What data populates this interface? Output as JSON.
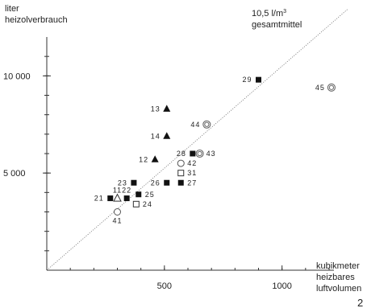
{
  "chart_data": {
    "type": "scatter",
    "ylabel_lines": [
      "liter",
      "heizolverbrauch"
    ],
    "xlabel_lines": [
      "kubikmeter",
      "heizbares",
      "luftvolumen"
    ],
    "page_number": "2",
    "xlim": [
      0,
      1200
    ],
    "ylim": [
      0,
      12000
    ],
    "x_tick_labels": [
      {
        "value": 500,
        "label": "500"
      },
      {
        "value": 1000,
        "label": "1000"
      }
    ],
    "y_tick_labels": [
      {
        "value": 5000,
        "label": "5 000"
      },
      {
        "value": 10000,
        "label": "10 000"
      }
    ],
    "x_minor_step": 100,
    "y_minor_step": 1000,
    "reference_line": {
      "slope_l_per_m3": 10.5,
      "label_value": "10,5 l/m",
      "label_exp": "3",
      "label_sub": "gesamtmittel"
    },
    "points": [
      {
        "id": "29",
        "x": 900,
        "y": 9800,
        "marker": "filled-square",
        "label_side": "left"
      },
      {
        "id": "45",
        "x": 1210,
        "y": 9400,
        "marker": "double-circle",
        "label_side": "left"
      },
      {
        "id": "13",
        "x": 510,
        "y": 8300,
        "marker": "filled-triangle",
        "label_side": "left"
      },
      {
        "id": "44",
        "x": 680,
        "y": 7500,
        "marker": "double-circle",
        "label_side": "left"
      },
      {
        "id": "14",
        "x": 510,
        "y": 6900,
        "marker": "filled-triangle",
        "label_side": "left"
      },
      {
        "id": "28",
        "x": 620,
        "y": 6000,
        "marker": "filled-square",
        "label_side": "left"
      },
      {
        "id": "43",
        "x": 650,
        "y": 6000,
        "marker": "double-circle",
        "label_side": "right"
      },
      {
        "id": "12",
        "x": 460,
        "y": 5700,
        "marker": "filled-triangle",
        "label_side": "left"
      },
      {
        "id": "42",
        "x": 570,
        "y": 5500,
        "marker": "open-circle",
        "label_side": "right"
      },
      {
        "id": "31",
        "x": 570,
        "y": 5000,
        "marker": "open-square",
        "label_side": "right"
      },
      {
        "id": "23",
        "x": 370,
        "y": 4500,
        "marker": "filled-square",
        "label_side": "left"
      },
      {
        "id": "26",
        "x": 510,
        "y": 4500,
        "marker": "filled-square",
        "label_side": "left"
      },
      {
        "id": "27",
        "x": 570,
        "y": 4500,
        "marker": "filled-square",
        "label_side": "right"
      },
      {
        "id": "25",
        "x": 390,
        "y": 3900,
        "marker": "filled-square",
        "label_side": "right"
      },
      {
        "id": "22",
        "x": 340,
        "y": 3700,
        "marker": "filled-square",
        "label_side": "above"
      },
      {
        "id": "21",
        "x": 270,
        "y": 3700,
        "marker": "filled-square",
        "label_side": "left"
      },
      {
        "id": "11",
        "x": 300,
        "y": 3700,
        "marker": "open-triangle",
        "label_side": "above"
      },
      {
        "id": "24",
        "x": 380,
        "y": 3400,
        "marker": "open-square",
        "label_side": "right"
      },
      {
        "id": "41",
        "x": 300,
        "y": 3000,
        "marker": "open-circle",
        "label_side": "below"
      }
    ]
  }
}
